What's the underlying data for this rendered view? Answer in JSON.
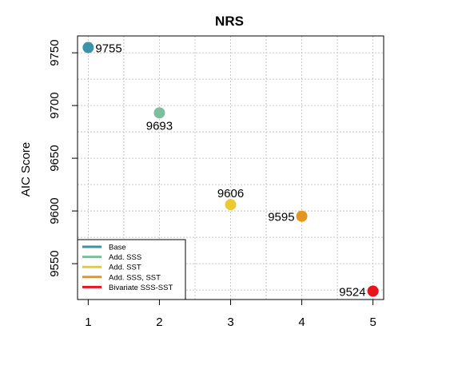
{
  "chart_data": {
    "type": "scatter",
    "title": "NRS",
    "xlabel": "",
    "ylabel": "AIC Score",
    "xlim": [
      0.85,
      5.15
    ],
    "ylim": [
      9516,
      9766
    ],
    "xticks": [
      1,
      2,
      3,
      4,
      5
    ],
    "yticks": [
      9550,
      9600,
      9650,
      9700,
      9750
    ],
    "grid": true,
    "legend_position": "bottom-left",
    "points": [
      {
        "x": 1,
        "y": 9755,
        "label": "9755",
        "label_side": "right",
        "color": "#3a93aa",
        "legend": "Base"
      },
      {
        "x": 2,
        "y": 9693,
        "label": "9693",
        "label_side": "below",
        "color": "#7dbf9c",
        "legend": "Add. SSS"
      },
      {
        "x": 3,
        "y": 9606,
        "label": "9606",
        "label_side": "above",
        "color": "#ecc930",
        "legend": "Add. SST"
      },
      {
        "x": 4,
        "y": 9595,
        "label": "9595",
        "label_side": "left",
        "color": "#e4961c",
        "legend": "Add. SSS, SST"
      },
      {
        "x": 5,
        "y": 9524,
        "label": "9524",
        "label_side": "left",
        "color": "#e8141b",
        "legend": "Bivariate SSS-SST"
      }
    ]
  }
}
